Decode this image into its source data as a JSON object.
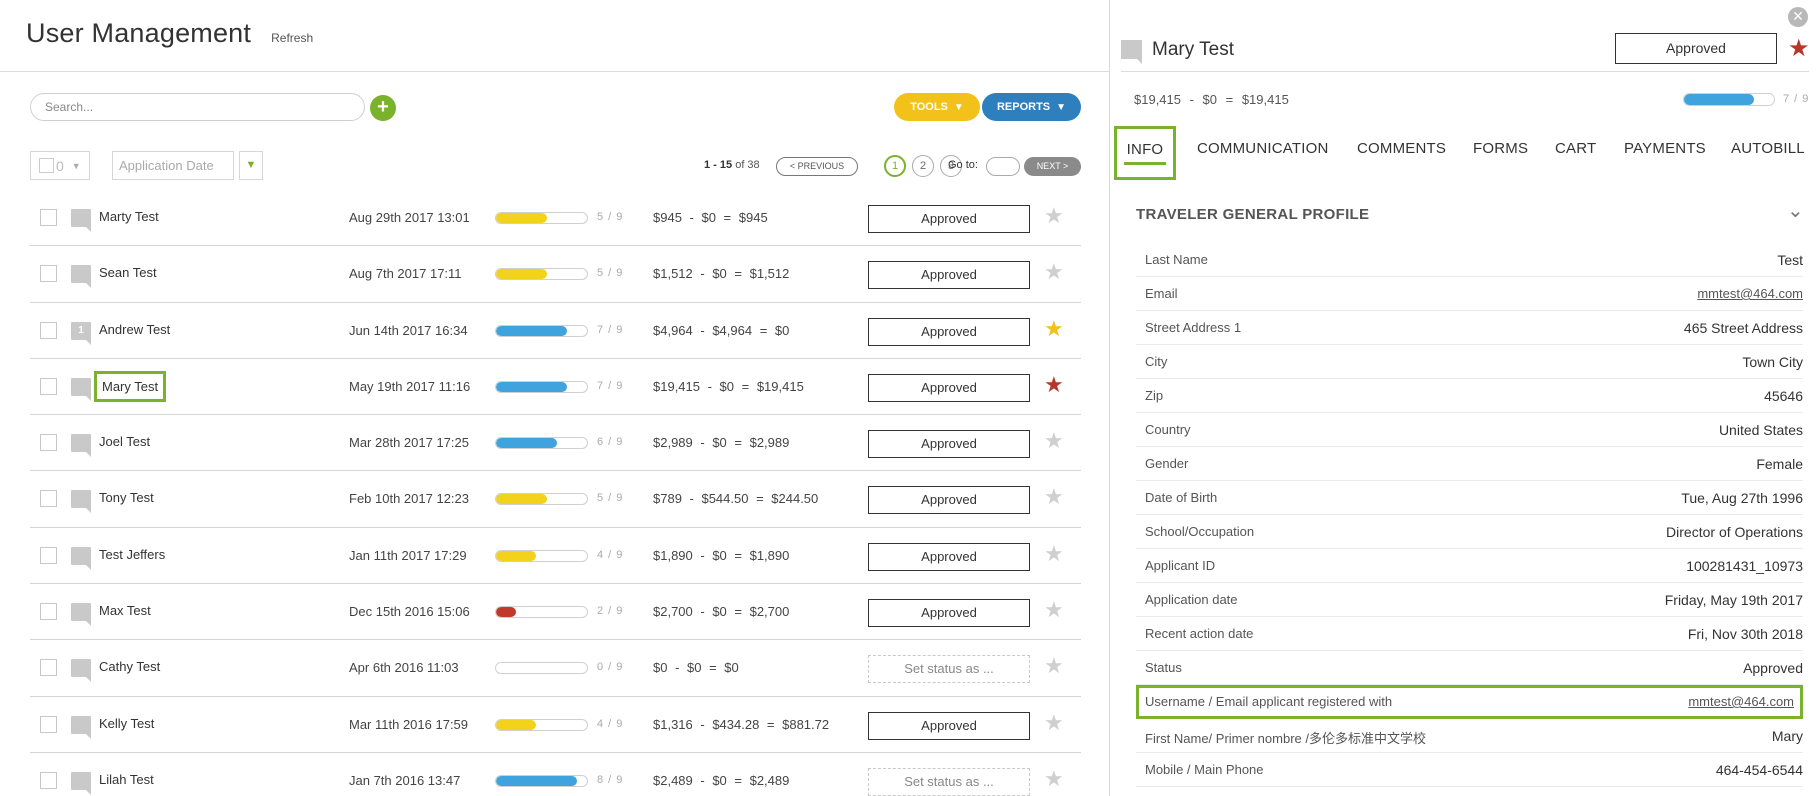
{
  "page": {
    "title": "User Management",
    "refresh_label": "Refresh"
  },
  "toolbar": {
    "search_placeholder": "Search...",
    "add_label": "+",
    "tools_label": "TOOLS",
    "reports_label": "REPORTS"
  },
  "filters": {
    "bulk_count": "0",
    "date_placeholder": "Application Date"
  },
  "pagination": {
    "range": "1 - 15",
    "of_label": " of 38",
    "prev_label": "< PREVIOUS",
    "pages": [
      "1",
      "2",
      "3"
    ],
    "goto_label": "Go to:",
    "next_label": "NEXT >"
  },
  "applicants": [
    {
      "name": "Marty Test",
      "comment_count": "",
      "date": "Aug 29th 2017 13:01",
      "progress": 5,
      "progress_total": 9,
      "progress_text": "5 / 9",
      "bar_color": "#f2d21b",
      "money": "$945 - $0 = $945",
      "status": "Approved",
      "starred": "none"
    },
    {
      "name": "Sean Test",
      "comment_count": "",
      "date": "Aug 7th 2017 17:11",
      "progress": 5,
      "progress_total": 9,
      "progress_text": "5 / 9",
      "bar_color": "#f2d21b",
      "money": "$1,512 - $0 = $1,512",
      "status": "Approved",
      "starred": "none"
    },
    {
      "name": "Andrew Test",
      "comment_count": "1",
      "date": "Jun 14th 2017 16:34",
      "progress": 7,
      "progress_total": 9,
      "progress_text": "7 / 9",
      "bar_color": "#3fa3dd",
      "money": "$4,964 - $4,964 = $0",
      "status": "Approved",
      "starred": "yellow"
    },
    {
      "name": "Mary Test",
      "comment_count": "",
      "date": "May 19th 2017 11:16",
      "progress": 7,
      "progress_total": 9,
      "progress_text": "7 / 9",
      "bar_color": "#3fa3dd",
      "money": "$19,415 - $0 = $19,415",
      "status": "Approved",
      "starred": "red"
    },
    {
      "name": "Joel Test",
      "comment_count": "",
      "date": "Mar 28th 2017 17:25",
      "progress": 6,
      "progress_total": 9,
      "progress_text": "6 / 9",
      "bar_color": "#3fa3dd",
      "money": "$2,989 - $0 = $2,989",
      "status": "Approved",
      "starred": "none"
    },
    {
      "name": "Tony Test",
      "comment_count": "",
      "date": "Feb 10th 2017 12:23",
      "progress": 5,
      "progress_total": 9,
      "progress_text": "5 / 9",
      "bar_color": "#f2d21b",
      "money": "$789 - $544.50 = $244.50",
      "status": "Approved",
      "starred": "none"
    },
    {
      "name": "Test Jeffers",
      "comment_count": "",
      "date": "Jan 11th 2017 17:29",
      "progress": 4,
      "progress_total": 9,
      "progress_text": "4 / 9",
      "bar_color": "#f2d21b",
      "money": "$1,890 - $0 = $1,890",
      "status": "Approved",
      "starred": "none"
    },
    {
      "name": "Max Test",
      "comment_count": "",
      "date": "Dec 15th 2016 15:06",
      "progress": 2,
      "progress_total": 9,
      "progress_text": "2 / 9",
      "bar_color": "#c0392b",
      "money": "$2,700 - $0 = $2,700",
      "status": "Approved",
      "starred": "none"
    },
    {
      "name": "Cathy Test",
      "comment_count": "",
      "date": "Apr 6th 2016 11:03",
      "progress": 0,
      "progress_total": 9,
      "progress_text": "0 / 9",
      "bar_color": "#3fa3dd",
      "money": "$0 - $0 = $0",
      "status": "Set status as ...",
      "starred": "none"
    },
    {
      "name": "Kelly Test",
      "comment_count": "",
      "date": "Mar 11th 2016 17:59",
      "progress": 4,
      "progress_total": 9,
      "progress_text": "4 / 9",
      "bar_color": "#f2d21b",
      "money": "$1,316 - $434.28 = $881.72",
      "status": "Approved",
      "starred": "none"
    },
    {
      "name": "Lilah Test",
      "comment_count": "",
      "date": "Jan 7th 2016 13:47",
      "progress": 8,
      "progress_total": 9,
      "progress_text": "8 / 9",
      "bar_color": "#3fa3dd",
      "money": "$2,489 - $0 = $2,489",
      "status": "Set status as ...",
      "starred": "none"
    }
  ],
  "detail": {
    "close_label": "✕",
    "name": "Mary Test",
    "status": "Approved",
    "money": "$19,415 - $0 = $19,415",
    "progress": 7,
    "progress_total": 9,
    "progress_text": "7 / 9",
    "tabs": [
      "INFO",
      "COMMUNICATION",
      "COMMENTS",
      "FORMS",
      "CART",
      "PAYMENTS",
      "AUTOBILL"
    ],
    "section_title": "TRAVELER GENERAL PROFILE",
    "fields": [
      {
        "label": "Last Name",
        "value": "Test",
        "link": false
      },
      {
        "label": "Email",
        "value": "mmtest@464.com",
        "link": true
      },
      {
        "label": "Street Address 1",
        "value": "465 Street Address",
        "link": false
      },
      {
        "label": "City",
        "value": "Town City",
        "link": false
      },
      {
        "label": "Zip",
        "value": "45646",
        "link": false
      },
      {
        "label": "Country",
        "value": "United States",
        "link": false
      },
      {
        "label": "Gender",
        "value": "Female",
        "link": false
      },
      {
        "label": "Date of Birth",
        "value": "Tue, Aug 27th 1996",
        "link": false
      },
      {
        "label": "School/Occupation",
        "value": "Director of Operations",
        "link": false
      },
      {
        "label": "Applicant ID",
        "value": "100281431_10973",
        "link": false
      },
      {
        "label": "Application date",
        "value": "Friday, May 19th 2017",
        "link": false
      },
      {
        "label": "Recent action date",
        "value": "Fri, Nov 30th 2018",
        "link": false
      },
      {
        "label": "Status",
        "value": "Approved",
        "link": false
      },
      {
        "label": "Username / Email applicant registered with",
        "value": "mmtest@464.com",
        "link": true
      },
      {
        "label": "First Name/ Primer nombre /多伦多标准中文学校",
        "value": "Mary",
        "link": false
      },
      {
        "label": "Mobile / Main Phone",
        "value": "464-454-6544",
        "link": false
      }
    ]
  },
  "colors": {
    "accent_green": "#7ab22c",
    "tools_yellow": "#f2c21b",
    "reports_blue": "#2d7fbd",
    "star_red": "#b8352a",
    "star_yellow": "#f2c21b",
    "star_grey": "#cfcfcf"
  }
}
